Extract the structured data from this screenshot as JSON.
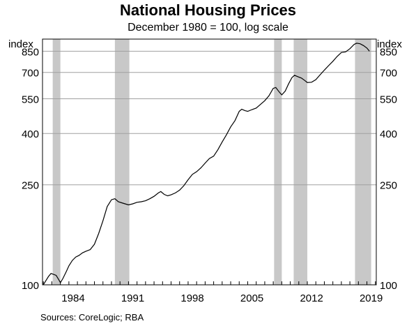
{
  "chart_data": {
    "type": "line",
    "title": "National Housing Prices",
    "subtitle": "December 1980 = 100, log scale",
    "y_unit_left": "index",
    "y_unit_right": "index",
    "y_scale": "log",
    "ylim": [
      100,
      950
    ],
    "y_ticks": [
      100,
      250,
      400,
      550,
      700,
      850
    ],
    "xlim": [
      1980.9,
      2020.1
    ],
    "x_ticks": [
      1984,
      1991,
      1998,
      2005,
      2012,
      2019
    ],
    "grid": true,
    "source": "Sources:   CoreLogic; RBA",
    "recession_bands": [
      [
        1982.1,
        1983.0
      ],
      [
        1989.4,
        1991.1
      ],
      [
        2008.1,
        2009.0
      ],
      [
        2010.4,
        2012.0
      ],
      [
        2017.6,
        2019.5
      ]
    ],
    "series": [
      {
        "values": [
          [
            1981.0,
            100
          ],
          [
            1981.3,
            104
          ],
          [
            1981.6,
            108
          ],
          [
            1981.9,
            111
          ],
          [
            1982.2,
            110
          ],
          [
            1982.5,
            109
          ],
          [
            1982.8,
            105
          ],
          [
            1983.0,
            102
          ],
          [
            1983.3,
            106
          ],
          [
            1983.7,
            113
          ],
          [
            1984.0,
            119
          ],
          [
            1984.4,
            125
          ],
          [
            1984.8,
            129
          ],
          [
            1985.2,
            131
          ],
          [
            1985.6,
            134
          ],
          [
            1986.0,
            136
          ],
          [
            1986.5,
            138
          ],
          [
            1987.0,
            145
          ],
          [
            1987.5,
            160
          ],
          [
            1988.0,
            180
          ],
          [
            1988.5,
            205
          ],
          [
            1989.0,
            218
          ],
          [
            1989.4,
            220
          ],
          [
            1989.8,
            214
          ],
          [
            1990.2,
            212
          ],
          [
            1990.6,
            210
          ],
          [
            1991.0,
            208
          ],
          [
            1991.5,
            210
          ],
          [
            1992.0,
            213
          ],
          [
            1992.5,
            214
          ],
          [
            1993.0,
            216
          ],
          [
            1993.5,
            220
          ],
          [
            1994.0,
            225
          ],
          [
            1994.5,
            232
          ],
          [
            1994.8,
            235
          ],
          [
            1995.2,
            229
          ],
          [
            1995.6,
            226
          ],
          [
            1996.0,
            228
          ],
          [
            1996.5,
            232
          ],
          [
            1997.0,
            238
          ],
          [
            1997.5,
            248
          ],
          [
            1998.0,
            262
          ],
          [
            1998.5,
            275
          ],
          [
            1999.0,
            282
          ],
          [
            1999.5,
            292
          ],
          [
            2000.0,
            305
          ],
          [
            2000.5,
            318
          ],
          [
            2001.0,
            325
          ],
          [
            2001.5,
            345
          ],
          [
            2002.0,
            370
          ],
          [
            2002.5,
            395
          ],
          [
            2003.0,
            425
          ],
          [
            2003.5,
            450
          ],
          [
            2004.0,
            490
          ],
          [
            2004.3,
            500
          ],
          [
            2004.7,
            493
          ],
          [
            2005.0,
            490
          ],
          [
            2005.5,
            498
          ],
          [
            2006.0,
            505
          ],
          [
            2006.5,
            522
          ],
          [
            2007.0,
            540
          ],
          [
            2007.5,
            565
          ],
          [
            2008.0,
            605
          ],
          [
            2008.3,
            610
          ],
          [
            2008.7,
            585
          ],
          [
            2009.0,
            570
          ],
          [
            2009.4,
            590
          ],
          [
            2009.8,
            630
          ],
          [
            2010.2,
            668
          ],
          [
            2010.5,
            682
          ],
          [
            2010.9,
            673
          ],
          [
            2011.3,
            665
          ],
          [
            2011.7,
            650
          ],
          [
            2012.0,
            638
          ],
          [
            2012.5,
            640
          ],
          [
            2013.0,
            655
          ],
          [
            2013.5,
            685
          ],
          [
            2014.0,
            715
          ],
          [
            2014.5,
            745
          ],
          [
            2015.0,
            775
          ],
          [
            2015.5,
            810
          ],
          [
            2016.0,
            840
          ],
          [
            2016.5,
            845
          ],
          [
            2017.0,
            870
          ],
          [
            2017.5,
            905
          ],
          [
            2017.8,
            915
          ],
          [
            2018.2,
            910
          ],
          [
            2018.6,
            895
          ],
          [
            2019.0,
            875
          ],
          [
            2019.3,
            850
          ]
        ]
      }
    ]
  }
}
